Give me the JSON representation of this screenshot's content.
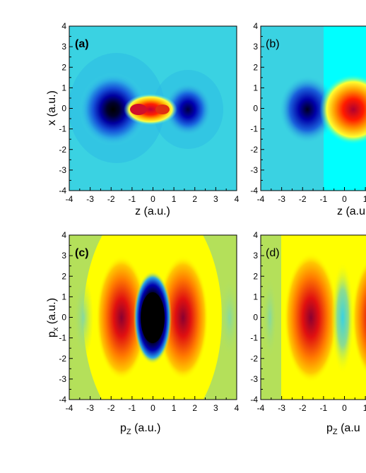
{
  "figure": {
    "panels": [
      {
        "label": "(a)",
        "label_bold": true,
        "xlabel": "z (a.u.)",
        "ylabel": "x (a.u.)",
        "xticks": [
          "-4",
          "-3",
          "-2",
          "-1",
          "0",
          "1",
          "2",
          "3",
          "4"
        ],
        "yticks": [
          "-4",
          "-3",
          "-2",
          "-1",
          "0",
          "1",
          "2",
          "3",
          "4"
        ],
        "background": "#3ad2e2"
      },
      {
        "label": "(b)",
        "label_bold": false,
        "xlabel": "z (a.u.)",
        "ylabel": "",
        "xticks": [
          "-4",
          "-3",
          "-2",
          "-1",
          "0",
          "1"
        ],
        "yticks": [
          "-4",
          "-3",
          "-2",
          "-1",
          "0",
          "1",
          "2",
          "3",
          "4"
        ],
        "background": "#3ad2e2"
      },
      {
        "label": "(c)",
        "label_bold": true,
        "xlabel": "p",
        "xlabel_sub": "Z",
        "xlabel_unit": " (a.u.)",
        "ylabel": "p",
        "ylabel_sub": "x",
        "ylabel_unit": " (a.u.)",
        "xticks": [
          "-4",
          "-3",
          "-2",
          "-1",
          "0",
          "1",
          "2",
          "3",
          "4"
        ],
        "yticks": [
          "-4",
          "-3",
          "-2",
          "-1",
          "0",
          "1",
          "2",
          "3",
          "4"
        ],
        "background": "#b4e05a"
      },
      {
        "label": "(d)",
        "label_bold": false,
        "xlabel": "p",
        "xlabel_sub": "Z",
        "xlabel_unit": " (a.u",
        "ylabel": "",
        "xticks": [
          "-4",
          "-3",
          "-2",
          "-1",
          "0",
          "1"
        ],
        "yticks": [
          "-4",
          "-3",
          "-2",
          "-1",
          "0",
          "1",
          "2",
          "3",
          "4"
        ],
        "background": "#b4e05a"
      }
    ]
  },
  "chart_data": [
    {
      "type": "heatmap",
      "panel": "(a)",
      "xlabel": "z (a.u.)",
      "ylabel": "x (a.u.)",
      "xlim": [
        -4,
        4
      ],
      "ylim": [
        -4,
        4
      ],
      "colormap": [
        "#000033",
        "#0000a0",
        "#1f5adc",
        "#3ad2e2",
        "#ffff00",
        "#ff8c00",
        "#e01010",
        "#8b0030"
      ],
      "features": [
        {
          "kind": "negative lobe",
          "center": [
            -1.8,
            0
          ],
          "extent": [
            -4,
            -1
          ],
          "color": "#000033"
        },
        {
          "kind": "positive lobe",
          "center": [
            -0.5,
            0
          ],
          "extent": [
            -1,
            0.8
          ],
          "color": "#e01010"
        },
        {
          "kind": "negative lobe",
          "center": [
            1.6,
            0
          ],
          "extent": [
            0.8,
            3.2
          ],
          "color": "#0000a0"
        }
      ]
    },
    {
      "type": "heatmap",
      "panel": "(b)",
      "xlabel": "z (a.u.)",
      "ylabel": "",
      "xlim": [
        -4,
        1
      ],
      "ylim": [
        -4,
        4
      ],
      "colormap": [
        "#000033",
        "#0000a0",
        "#1f5adc",
        "#3ad2e2",
        "#00ffff",
        "#ffff00",
        "#ff8c00",
        "#e01010"
      ],
      "features": [
        {
          "kind": "negative lobe",
          "center": [
            -1.5,
            0
          ],
          "extent": [
            -3,
            -1
          ],
          "color": "#000033"
        },
        {
          "kind": "positive lobe",
          "center": [
            0.5,
            0
          ],
          "extent": [
            -1,
            1
          ],
          "color": "#e01010"
        },
        {
          "kind": "step boundary",
          "at_z": -1,
          "left_color": "#3ad2e2",
          "right_color": "#00ffff"
        }
      ]
    },
    {
      "type": "heatmap",
      "panel": "(c)",
      "xlabel": "pZ (a.u.)",
      "ylabel": "px (a.u.)",
      "xlim": [
        -4,
        4
      ],
      "ylim": [
        -4,
        4
      ],
      "colormap": [
        "#000000",
        "#0000a0",
        "#3ad2e2",
        "#b4e05a",
        "#ffff00",
        "#ff8c00",
        "#e01010",
        "#8b0030"
      ],
      "features": [
        {
          "kind": "negative lobe",
          "center": [
            0,
            0
          ],
          "color": "#000000"
        },
        {
          "kind": "positive lobe",
          "center": [
            -1.4,
            0
          ],
          "color": "#8b0030"
        },
        {
          "kind": "positive lobe",
          "center": [
            1.4,
            0
          ],
          "color": "#8b0030"
        },
        {
          "kind": "weak negative lobe",
          "center": [
            -3.5,
            0
          ],
          "color": "#8edc8c"
        },
        {
          "kind": "weak negative lobe",
          "center": [
            3.5,
            0
          ],
          "color": "#8edc8c"
        }
      ]
    },
    {
      "type": "heatmap",
      "panel": "(d)",
      "xlabel": "pZ (a.u.)",
      "ylabel": "",
      "xlim": [
        -4,
        1
      ],
      "ylim": [
        -4,
        4
      ],
      "colormap": [
        "#3ad2e2",
        "#8edc8c",
        "#b4e05a",
        "#ffff00",
        "#ff8c00",
        "#e01010",
        "#8b0030"
      ],
      "features": [
        {
          "kind": "positive lobe",
          "center": [
            -1.5,
            0
          ],
          "color": "#8b0030"
        },
        {
          "kind": "weak negative lobe",
          "center": [
            -0.1,
            0
          ],
          "color": "#3ad2e2"
        },
        {
          "kind": "weak negative lobe",
          "center": [
            -3.5,
            0
          ],
          "color": "#8edc8c"
        },
        {
          "kind": "positive lobe",
          "center": [
            1.2,
            0
          ],
          "color": "#e01010"
        }
      ]
    }
  ]
}
